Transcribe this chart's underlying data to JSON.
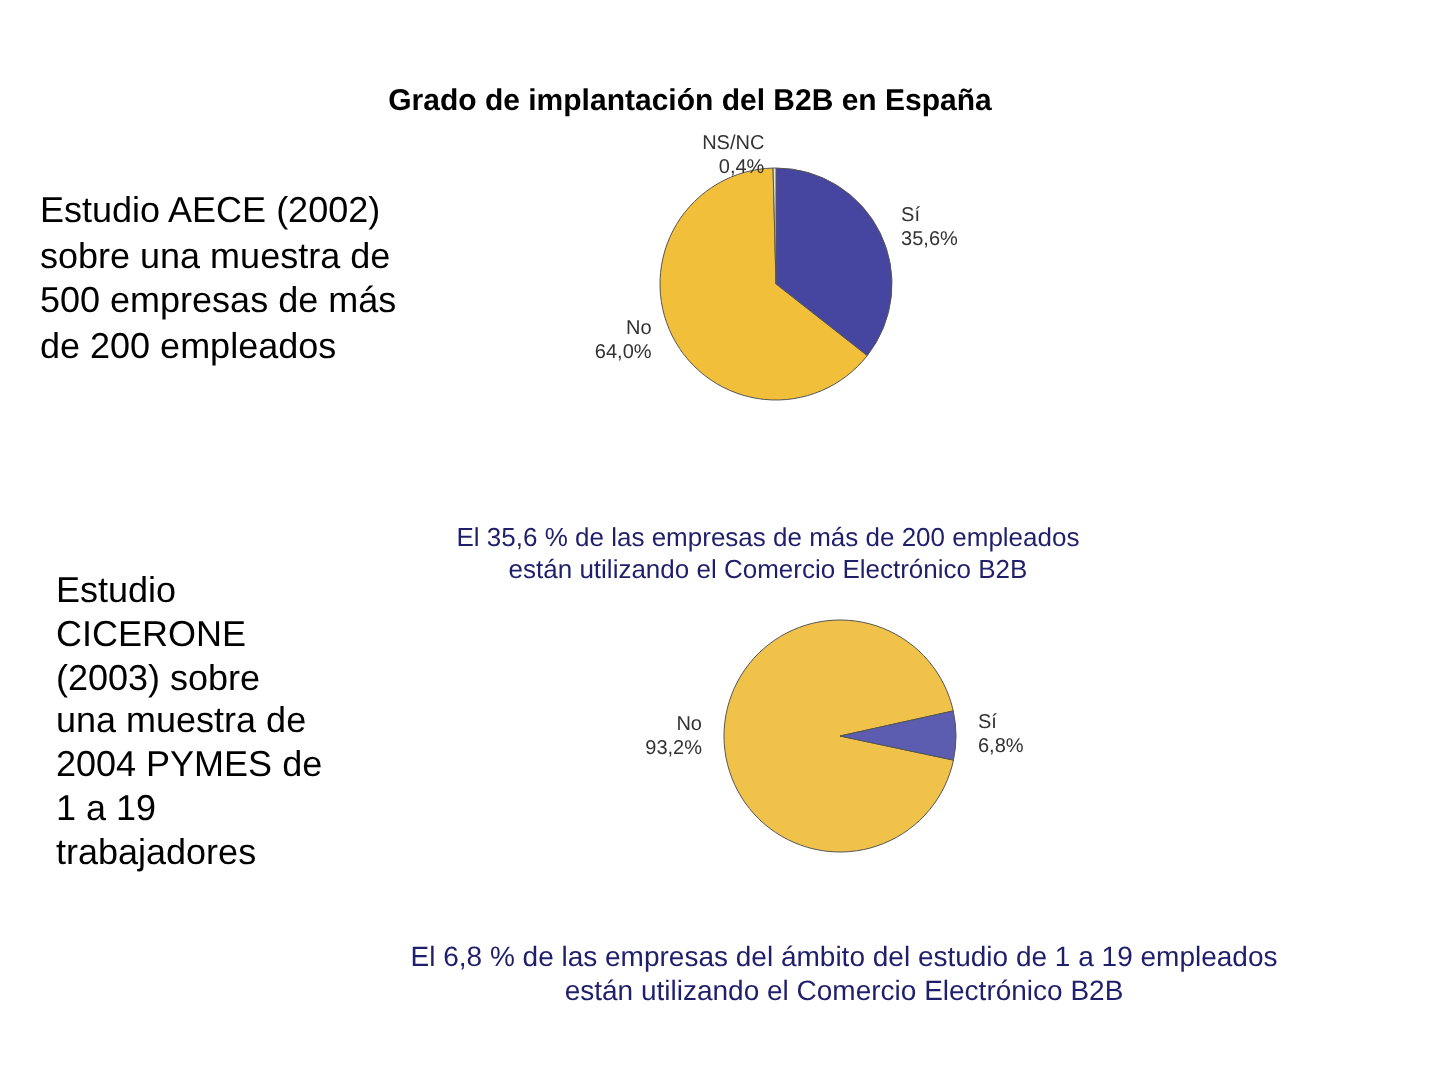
{
  "chart_data": [
    {
      "type": "pie",
      "title": "Grado de implantación del B2B en España",
      "categories": [
        "Sí",
        "No",
        "NS/NC"
      ],
      "values": [
        35.6,
        64.0,
        0.4
      ],
      "colors": [
        "#4646a0",
        "#f2bf3a",
        "#e6e6de"
      ],
      "value_labels": [
        "35,6%",
        "64,0%",
        "0,4%"
      ],
      "annotations": [
        "Estudio AECE (2002) sobre una muestra de 500 empresas de más de 200 empleados",
        "El 35,6 % de las empresas de más de 200 empleados están utilizando el Comercio Electrónico B2B"
      ]
    },
    {
      "type": "pie",
      "categories": [
        "No",
        "Sí"
      ],
      "values": [
        93.2,
        6.8
      ],
      "colors": [
        "#f0c24a",
        "#5c5cb0"
      ],
      "value_labels": [
        "93,2%",
        "6,8%"
      ],
      "annotations": [
        "Estudio CICERONE (2003) sobre una muestra de 2004 PYMES de 1 a 19 trabajadores",
        "El 6,8 % de las empresas del ámbito del estudio de 1 a 19 empleados están utilizando el Comercio Electrónico B2B"
      ]
    }
  ]
}
